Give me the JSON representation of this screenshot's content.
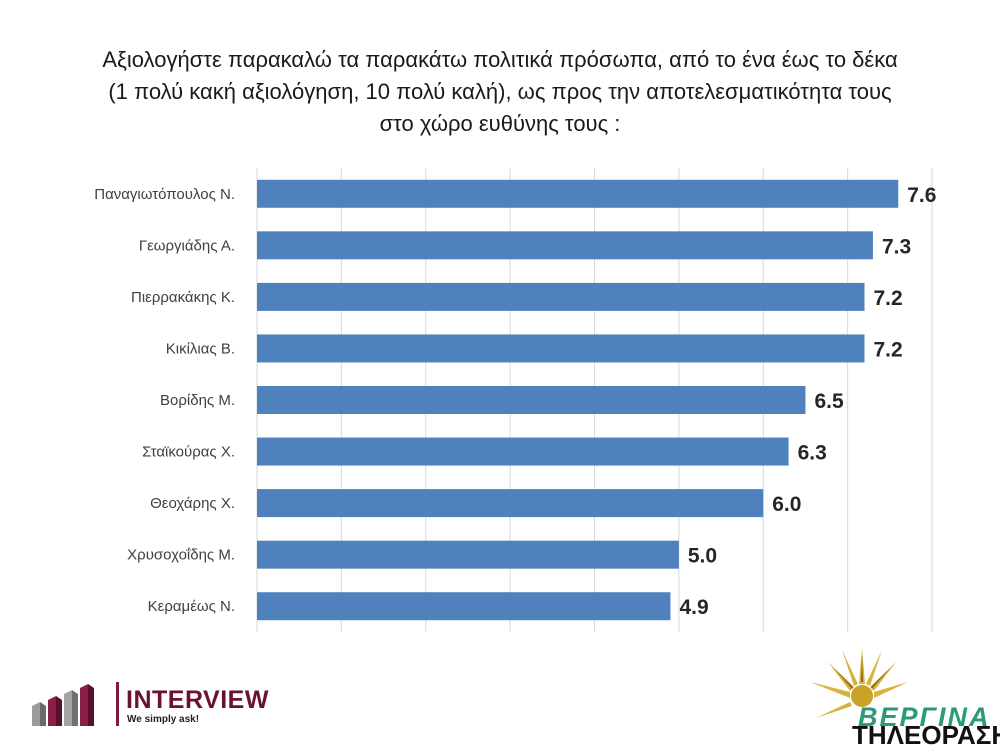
{
  "title_lines": [
    "Αξιολογήστε παρακαλώ τα παρακάτω πολιτικά πρόσωπα, από το ένα έως το δέκα",
    "(1 πολύ κακή αξιολόγηση, 10 πολύ καλή), ως προς την αποτελεσματικότητα τους",
    "στο χώρο ευθύνης τους :"
  ],
  "chart_data": {
    "type": "bar",
    "orientation": "horizontal",
    "title": "Αξιολογήστε παρακαλώ τα παρακάτω πολιτικά πρόσωπα, από το ένα έως το δέκα (1 πολύ κακή αξιολόγηση, 10 πολύ καλή), ως προς την αποτελεσματικότητα τους στο χώρο ευθύνης τους :",
    "categories": [
      "Παναγιωτόπουλος Ν.",
      "Γεωργιάδης Α.",
      "Πιερρακάκης Κ.",
      "Κικίλιας Β.",
      "Βορίδης Μ.",
      "Σταϊκούρας Χ.",
      "Θεοχάρης Χ.",
      "Χρυσοχοΐδης Μ.",
      "Κεραμέως Ν."
    ],
    "values": [
      7.6,
      7.3,
      7.2,
      7.2,
      6.5,
      6.3,
      6.0,
      5.0,
      4.9
    ],
    "data_labels": [
      "7.6",
      "7.3",
      "7.2",
      "7.2",
      "6.5",
      "6.3",
      "6.0",
      "5.0",
      "4.9"
    ],
    "xlim": [
      0,
      8
    ],
    "grid": true,
    "xlabel": "",
    "ylabel": "",
    "bar_color": "#4f81bd"
  },
  "logos": {
    "interview": {
      "name": "INTERVIEW",
      "tagline": "We simply ask!",
      "color": "#6b1234"
    },
    "vergina": {
      "name": "ΒΕΡΓΙΝΑ",
      "subtitle": "ΤΗΛΕΟΡΑΣΗ",
      "color": "#2a9a7a"
    }
  }
}
